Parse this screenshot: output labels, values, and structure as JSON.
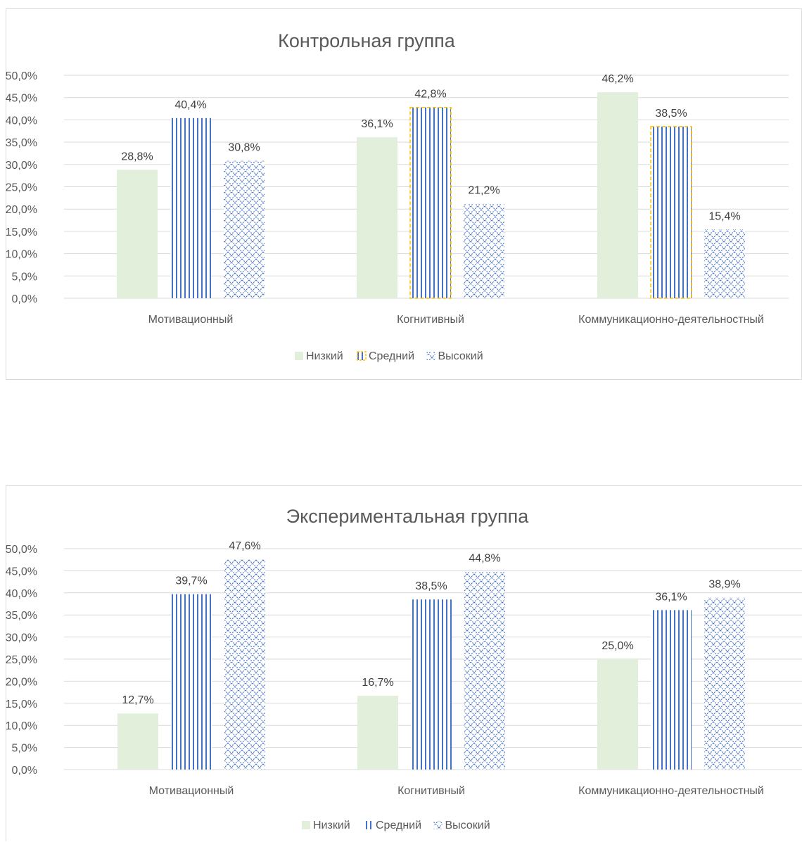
{
  "chart_data": [
    {
      "type": "bar",
      "title": "Контрольная группа",
      "categories": [
        "Мотивационный",
        "Когнитивный",
        "Коммуникационно-деятельностный"
      ],
      "series": [
        {
          "name": "Низкий",
          "values": [
            28.8,
            36.1,
            46.2
          ],
          "labels": [
            "28,8%",
            "36,1%",
            "46,2%"
          ]
        },
        {
          "name": "Средний",
          "values": [
            40.4,
            42.8,
            38.5
          ],
          "labels": [
            "40,4%",
            "42,8%",
            "38,5%"
          ]
        },
        {
          "name": "Высокий",
          "values": [
            30.8,
            21.2,
            15.4
          ],
          "labels": [
            "30,8%",
            "21,2%",
            "15,4%"
          ]
        }
      ],
      "ylim": [
        0,
        50
      ],
      "yticks": [
        "0,0%",
        "5,0%",
        "10,0%",
        "15,0%",
        "20,0%",
        "25,0%",
        "30,0%",
        "35,0%",
        "40,0%",
        "45,0%",
        "50,0%"
      ],
      "legend_position": "bottom",
      "grid": true
    },
    {
      "type": "bar",
      "title": "Экспериментальная группа",
      "categories": [
        "Мотивационный",
        "Когнитивный",
        "Коммуникационно-деятельностный"
      ],
      "series": [
        {
          "name": "Низкий",
          "values": [
            12.7,
            16.7,
            25.0
          ],
          "labels": [
            "12,7%",
            "16,7%",
            "25,0%"
          ]
        },
        {
          "name": "Средний",
          "values": [
            39.7,
            38.5,
            36.1
          ],
          "labels": [
            "39,7%",
            "38,5%",
            "36,1%"
          ]
        },
        {
          "name": "Высокий",
          "values": [
            47.6,
            44.8,
            38.9
          ],
          "labels": [
            "47,6%",
            "44,8%",
            "38,9%"
          ]
        }
      ],
      "ylim": [
        0,
        50
      ],
      "yticks": [
        "0,0%",
        "5,0%",
        "10,0%",
        "15,0%",
        "20,0%",
        "25,0%",
        "30,0%",
        "35,0%",
        "40,0%",
        "45,0%",
        "50,0%"
      ],
      "legend_position": "bottom",
      "grid": true
    }
  ],
  "colors": {
    "low": "#e2efda",
    "mid_stripes": "#4472c4",
    "high_pattern": "#4472c4",
    "gold_outline": "#ffc000",
    "grid": "#d9d9d9",
    "text": "#595959"
  }
}
